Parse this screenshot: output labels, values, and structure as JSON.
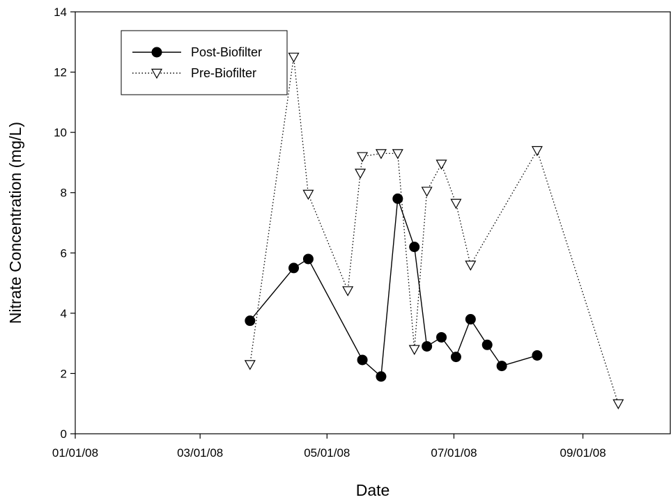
{
  "chart_data": {
    "type": "line",
    "title": "",
    "xlabel": "Date",
    "ylabel": "Nitrate Concentration (mg/L)",
    "x_axis": {
      "scale": "date",
      "range": [
        "2008-01-01",
        "2008-10-13"
      ],
      "ticks": [
        {
          "date": "2008-01-01",
          "label": "01/01/08"
        },
        {
          "date": "2008-03-01",
          "label": "03/01/08"
        },
        {
          "date": "2008-05-01",
          "label": "05/01/08"
        },
        {
          "date": "2008-07-01",
          "label": "07/01/08"
        },
        {
          "date": "2008-09-01",
          "label": "09/01/08"
        }
      ]
    },
    "y_axis": {
      "range": [
        0,
        14
      ],
      "ticks": [
        0,
        2,
        4,
        6,
        8,
        10,
        12,
        14
      ]
    },
    "grid": false,
    "legend_position": "top-left",
    "series": [
      {
        "name": "Post-Biofilter",
        "line_style": "solid",
        "marker": "filled-circle",
        "color": "#000000",
        "points": [
          {
            "x": "2008-03-25",
            "y": 3.75
          },
          {
            "x": "2008-04-15",
            "y": 5.5
          },
          {
            "x": "2008-04-22",
            "y": 5.8
          },
          {
            "x": "2008-05-18",
            "y": 2.45
          },
          {
            "x": "2008-05-27",
            "y": 1.9
          },
          {
            "x": "2008-06-04",
            "y": 7.8
          },
          {
            "x": "2008-06-12",
            "y": 6.2
          },
          {
            "x": "2008-06-18",
            "y": 2.9
          },
          {
            "x": "2008-06-25",
            "y": 3.2
          },
          {
            "x": "2008-07-02",
            "y": 2.55
          },
          {
            "x": "2008-07-09",
            "y": 3.8
          },
          {
            "x": "2008-07-17",
            "y": 2.95
          },
          {
            "x": "2008-07-24",
            "y": 2.25
          },
          {
            "x": "2008-08-10",
            "y": 2.6
          }
        ]
      },
      {
        "name": "Pre-Biofilter",
        "line_style": "dotted",
        "marker": "open-down-triangle",
        "color": "#000000",
        "points": [
          {
            "x": "2008-03-25",
            "y": 2.3
          },
          {
            "x": "2008-04-15",
            "y": 12.5
          },
          {
            "x": "2008-04-22",
            "y": 7.95
          },
          {
            "x": "2008-05-11",
            "y": 4.75
          },
          {
            "x": "2008-05-17",
            "y": 8.65
          },
          {
            "x": "2008-05-18",
            "y": 9.2
          },
          {
            "x": "2008-05-27",
            "y": 9.3
          },
          {
            "x": "2008-06-04",
            "y": 9.3
          },
          {
            "x": "2008-06-12",
            "y": 2.8
          },
          {
            "x": "2008-06-18",
            "y": 8.05
          },
          {
            "x": "2008-06-25",
            "y": 8.95
          },
          {
            "x": "2008-07-02",
            "y": 7.65
          },
          {
            "x": "2008-07-09",
            "y": 5.6
          },
          {
            "x": "2008-08-10",
            "y": 9.4
          },
          {
            "x": "2008-09-18",
            "y": 1.0
          }
        ]
      }
    ]
  }
}
